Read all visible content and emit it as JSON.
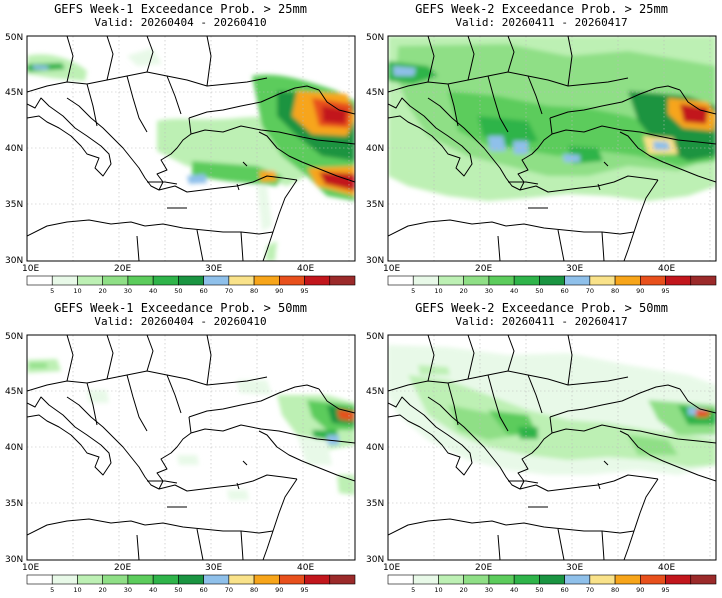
{
  "palette": {
    "white": "#ffffff",
    "c5": "#e8f9e8",
    "c10": "#bdf0b4",
    "c20": "#8fdf86",
    "c30": "#5ccc5c",
    "c40": "#2fb44a",
    "c50": "#1a9441",
    "c60": "#8fc0ea",
    "c70": "#f9e28a",
    "c80": "#f7a51a",
    "c90": "#e8501c",
    "c95": "#c2161c",
    "c100": "#9b2a2a"
  },
  "colorbar": {
    "labels": [
      "5",
      "10",
      "20",
      "30",
      "40",
      "50",
      "60",
      "70",
      "80",
      "90",
      "95"
    ],
    "colors": [
      "#ffffff",
      "#e8f9e8",
      "#bdf0b4",
      "#8fdf86",
      "#5ccc5c",
      "#2fb44a",
      "#1a9441",
      "#8fc0ea",
      "#f9e28a",
      "#f7a51a",
      "#e8501c",
      "#c2161c",
      "#9b2a2a"
    ]
  },
  "axes": {
    "lat_labels": [
      "50N",
      "45N",
      "40N",
      "35N",
      "30N"
    ],
    "lon_labels": [
      "10E",
      "20E",
      "30E",
      "40E"
    ]
  },
  "panels": [
    {
      "title": "GEFS Week-1 Exceedance Prob. > 25mm",
      "valid": "Valid: 20260404 - 20260410"
    },
    {
      "title": "GEFS Week-2 Exceedance Prob. > 25mm",
      "valid": "Valid: 20260411 - 20260417"
    },
    {
      "title": "GEFS Week-1 Exceedance Prob. > 50mm",
      "valid": "Valid: 20260404 - 20260410"
    },
    {
      "title": "GEFS Week-2 Exceedance Prob. > 50mm",
      "valid": "Valid: 20260411 - 20260417"
    }
  ]
}
